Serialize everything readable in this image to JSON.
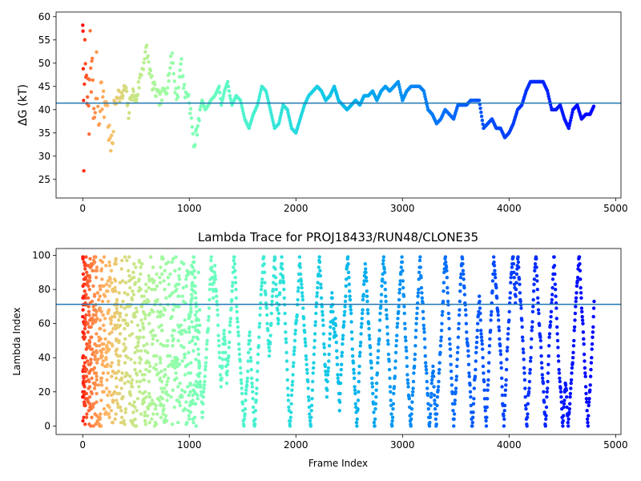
{
  "chart_data": [
    {
      "type": "scatter",
      "title": "",
      "xlabel": "",
      "ylabel": "ΔG (kT)",
      "ylabel_symbol": "ΔG",
      "ylabel_unit": "(kT)",
      "xlim": [
        -250,
        5050
      ],
      "ylim": [
        21,
        61
      ],
      "xticks": [
        0,
        1000,
        2000,
        3000,
        4000,
        5000
      ],
      "yticks": [
        25,
        30,
        35,
        40,
        45,
        50,
        55,
        60
      ],
      "hline": 41.4,
      "hline_color": "#1f77b4",
      "colormap": "rainbow",
      "grid": false,
      "legend": "none",
      "trace": [
        [
          0,
          60
        ],
        [
          5,
          48
        ],
        [
          10,
          30
        ],
        [
          20,
          56
        ],
        [
          30,
          50
        ],
        [
          40,
          38
        ],
        [
          50,
          47
        ],
        [
          60,
          34
        ],
        [
          70,
          55
        ],
        [
          80,
          44
        ],
        [
          90,
          52
        ],
        [
          100,
          41
        ],
        [
          110,
          36
        ],
        [
          130,
          49
        ],
        [
          150,
          37
        ],
        [
          170,
          45
        ],
        [
          200,
          40
        ],
        [
          220,
          43
        ],
        [
          250,
          34
        ],
        [
          270,
          31
        ],
        [
          300,
          41
        ],
        [
          330,
          44
        ],
        [
          360,
          42
        ],
        [
          400,
          45
        ],
        [
          430,
          39
        ],
        [
          460,
          44
        ],
        [
          500,
          42
        ],
        [
          540,
          47
        ],
        [
          580,
          51
        ],
        [
          600,
          53
        ],
        [
          630,
          48
        ],
        [
          660,
          45
        ],
        [
          700,
          43
        ],
        [
          730,
          42
        ],
        [
          760,
          44
        ],
        [
          790,
          45
        ],
        [
          820,
          49
        ],
        [
          840,
          52
        ],
        [
          860,
          46
        ],
        [
          880,
          43
        ],
        [
          900,
          44
        ],
        [
          920,
          51
        ],
        [
          940,
          47
        ],
        [
          960,
          43
        ],
        [
          980,
          44
        ],
        [
          1000,
          42
        ],
        [
          1020,
          38
        ],
        [
          1040,
          32
        ],
        [
          1060,
          34
        ],
        [
          1080,
          37
        ],
        [
          1100,
          40
        ],
        [
          1120,
          42
        ],
        [
          1150,
          40
        ],
        [
          1180,
          41
        ],
        [
          1200,
          42
        ],
        [
          1240,
          43
        ],
        [
          1280,
          45
        ],
        [
          1300,
          41
        ],
        [
          1330,
          44
        ],
        [
          1360,
          46
        ],
        [
          1380,
          43
        ],
        [
          1400,
          41
        ],
        [
          1440,
          43
        ],
        [
          1480,
          42
        ],
        [
          1520,
          38
        ],
        [
          1560,
          36
        ],
        [
          1600,
          39
        ],
        [
          1640,
          41
        ],
        [
          1680,
          45
        ],
        [
          1720,
          44
        ],
        [
          1760,
          40
        ],
        [
          1800,
          36
        ],
        [
          1840,
          37
        ],
        [
          1880,
          41
        ],
        [
          1920,
          40
        ],
        [
          1960,
          36
        ],
        [
          2000,
          35
        ],
        [
          2040,
          38
        ],
        [
          2080,
          41
        ],
        [
          2120,
          43
        ],
        [
          2160,
          44
        ],
        [
          2200,
          45
        ],
        [
          2240,
          44
        ],
        [
          2280,
          42
        ],
        [
          2320,
          43
        ],
        [
          2360,
          45
        ],
        [
          2400,
          42
        ],
        [
          2440,
          41
        ],
        [
          2480,
          40
        ],
        [
          2520,
          41
        ],
        [
          2560,
          42
        ],
        [
          2600,
          41
        ],
        [
          2640,
          43
        ],
        [
          2680,
          43
        ],
        [
          2720,
          44
        ],
        [
          2760,
          42
        ],
        [
          2800,
          44
        ],
        [
          2840,
          45
        ],
        [
          2880,
          44
        ],
        [
          2920,
          45
        ],
        [
          2960,
          46
        ],
        [
          3000,
          42
        ],
        [
          3040,
          44
        ],
        [
          3080,
          45
        ],
        [
          3120,
          45
        ],
        [
          3160,
          45
        ],
        [
          3200,
          44
        ],
        [
          3240,
          40
        ],
        [
          3280,
          39
        ],
        [
          3320,
          37
        ],
        [
          3360,
          38
        ],
        [
          3400,
          40
        ],
        [
          3440,
          39
        ],
        [
          3480,
          38
        ],
        [
          3520,
          41
        ],
        [
          3560,
          41
        ],
        [
          3600,
          41
        ],
        [
          3640,
          42
        ],
        [
          3680,
          42
        ],
        [
          3720,
          42
        ],
        [
          3760,
          36
        ],
        [
          3800,
          37
        ],
        [
          3840,
          38
        ],
        [
          3880,
          36
        ],
        [
          3920,
          36
        ],
        [
          3960,
          34
        ],
        [
          4000,
          35
        ],
        [
          4040,
          37
        ],
        [
          4080,
          40
        ],
        [
          4120,
          41
        ],
        [
          4160,
          44
        ],
        [
          4200,
          46
        ],
        [
          4240,
          46
        ],
        [
          4280,
          46
        ],
        [
          4320,
          46
        ],
        [
          4360,
          44
        ],
        [
          4400,
          40
        ],
        [
          4440,
          40
        ],
        [
          4480,
          41
        ],
        [
          4520,
          38
        ],
        [
          4560,
          36
        ],
        [
          4600,
          40
        ],
        [
          4640,
          41
        ],
        [
          4680,
          38
        ],
        [
          4720,
          39
        ],
        [
          4760,
          39
        ],
        [
          4800,
          41
        ]
      ]
    },
    {
      "type": "scatter",
      "title": "Lambda Trace for PROJ18433/RUN48/CLONE35",
      "xlabel": "Frame Index",
      "ylabel": "Lambda Index",
      "xlim": [
        -250,
        5050
      ],
      "ylim": [
        -5,
        104
      ],
      "xticks": [
        0,
        1000,
        2000,
        3000,
        4000,
        5000
      ],
      "yticks": [
        0,
        20,
        40,
        60,
        80,
        100
      ],
      "hline": 71.3,
      "hline_color": "#1f77b4",
      "colormap": "rainbow",
      "grid": false,
      "legend": "none",
      "x_range": [
        0,
        4800
      ],
      "lambda_range": [
        0,
        99
      ]
    }
  ]
}
